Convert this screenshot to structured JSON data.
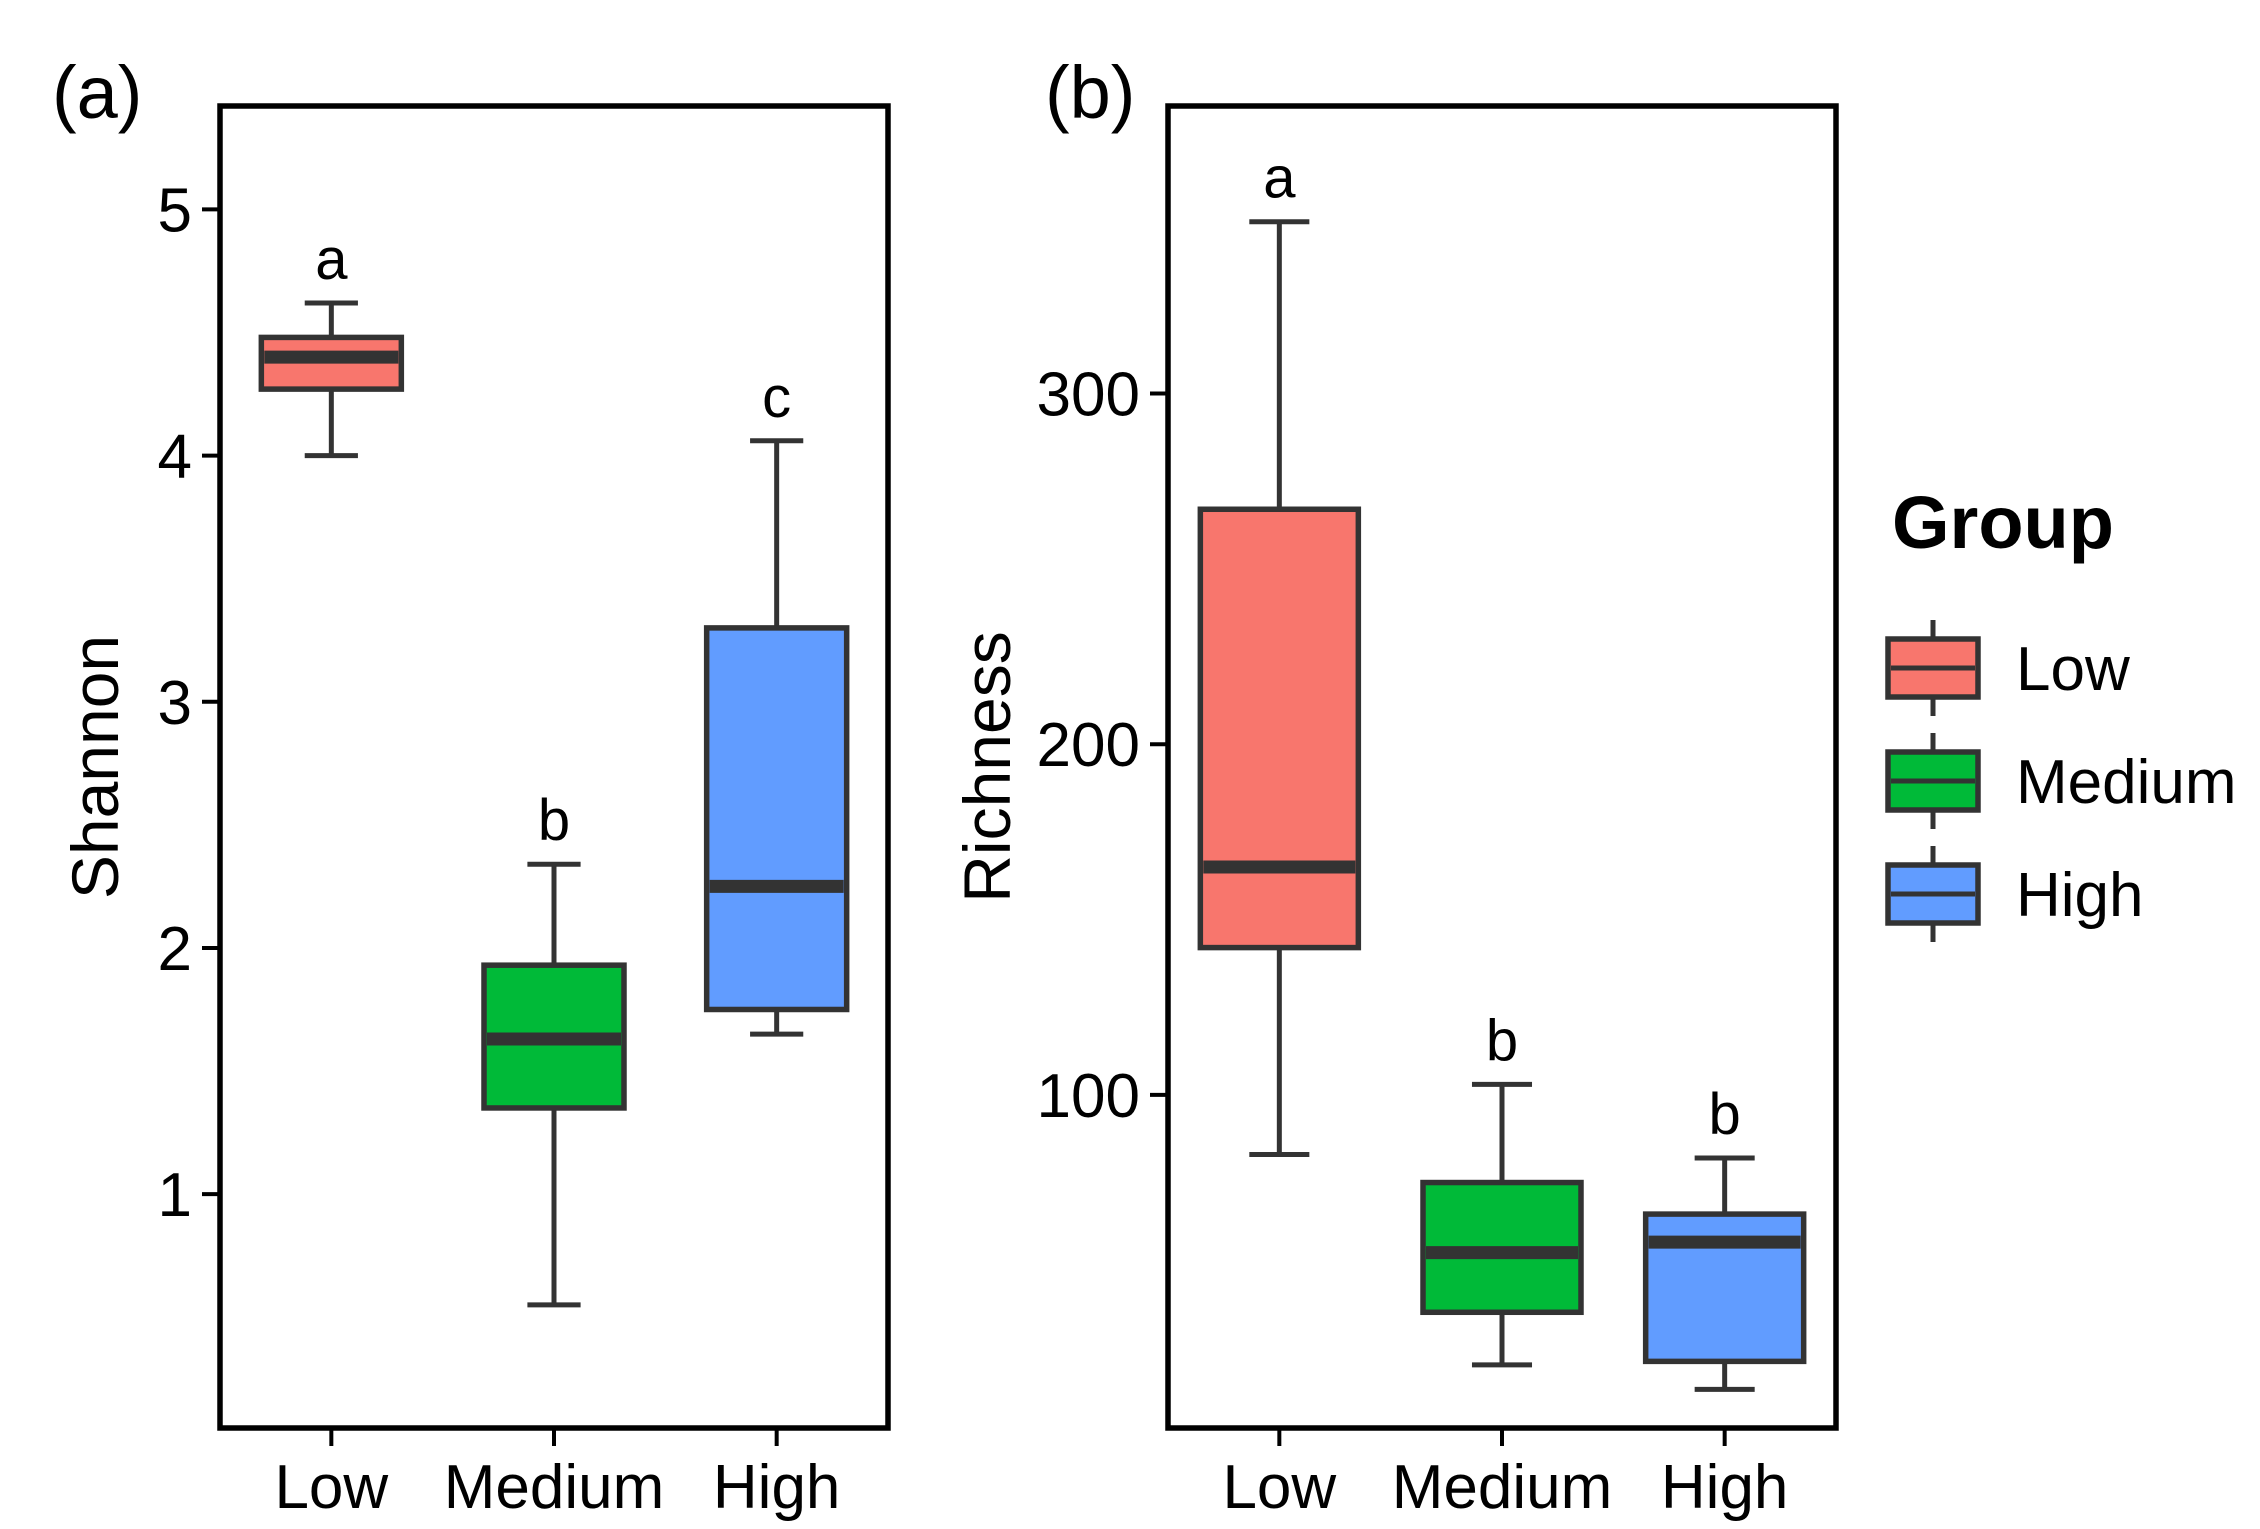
{
  "legend": {
    "title": "Group",
    "items": [
      {
        "label": "Low",
        "color": "#F8766D"
      },
      {
        "label": "Medium",
        "color": "#00BA38"
      },
      {
        "label": "High",
        "color": "#619CFF"
      }
    ]
  },
  "chart_data": [
    {
      "type": "box",
      "panel_label": "(a)",
      "ylabel": "Shannon",
      "xlabel": "",
      "ylim": [
        0.05,
        5.42
      ],
      "yticks": [
        1,
        2,
        3,
        4,
        5
      ],
      "categories": [
        "Low",
        "Medium",
        "High"
      ],
      "colors": [
        "#F8766D",
        "#00BA38",
        "#619CFF"
      ],
      "boxes": [
        {
          "group": "Low",
          "min": 4.0,
          "q1": 4.27,
          "median": 4.4,
          "q3": 4.48,
          "max": 4.62,
          "sig": "a"
        },
        {
          "group": "Medium",
          "min": 0.55,
          "q1": 1.35,
          "median": 1.63,
          "q3": 1.93,
          "max": 2.34,
          "sig": "b"
        },
        {
          "group": "High",
          "min": 1.65,
          "q1": 1.75,
          "median": 2.25,
          "q3": 3.3,
          "max": 4.06,
          "sig": "c"
        }
      ]
    },
    {
      "type": "box",
      "panel_label": "(b)",
      "ylabel": "Richness",
      "xlabel": "",
      "ylim": [
        5,
        382
      ],
      "yticks": [
        100,
        200,
        300
      ],
      "categories": [
        "Low",
        "Medium",
        "High"
      ],
      "colors": [
        "#F8766D",
        "#00BA38",
        "#619CFF"
      ],
      "boxes": [
        {
          "group": "Low",
          "min": 83,
          "q1": 142,
          "median": 165,
          "q3": 267,
          "max": 349,
          "sig": "a"
        },
        {
          "group": "Medium",
          "min": 23,
          "q1": 38,
          "median": 55,
          "q3": 75,
          "max": 103,
          "sig": "b"
        },
        {
          "group": "High",
          "min": 16,
          "q1": 24,
          "median": 58,
          "q3": 66,
          "max": 82,
          "sig": "b"
        }
      ]
    }
  ]
}
